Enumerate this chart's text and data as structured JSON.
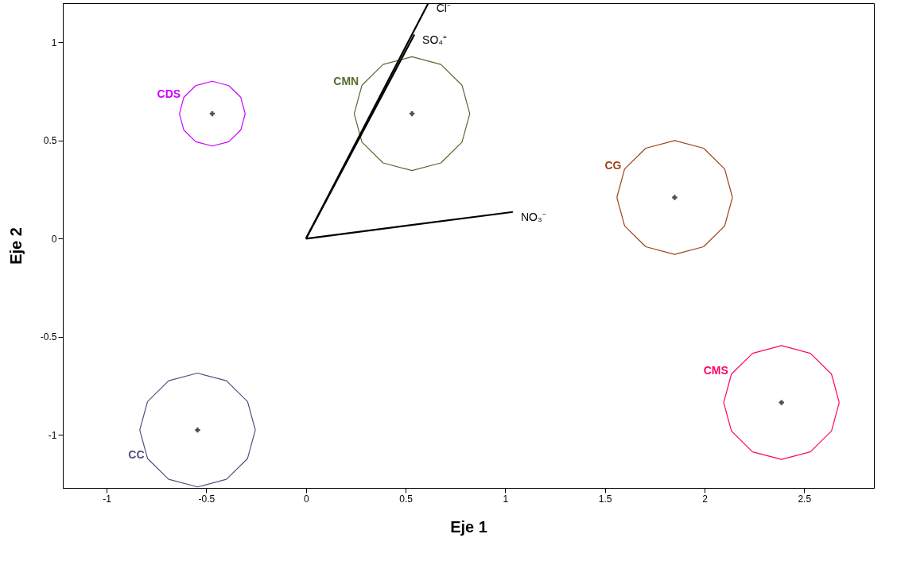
{
  "chart_data": {
    "type": "scatter",
    "xlabel": "Eje 1",
    "ylabel": "Eje 2",
    "xlim": [
      -1.22,
      2.85
    ],
    "ylim": [
      -1.27,
      1.2
    ],
    "xticks": [
      -1,
      -0.5,
      0,
      0.5,
      1,
      1.5,
      2,
      2.5
    ],
    "yticks": [
      -1,
      -0.5,
      0,
      0.5,
      1
    ],
    "grid": false,
    "series": [
      {
        "name": "CDS",
        "type": "line",
        "color": "#cc00ff",
        "x": [
          -0.635,
          -0.613,
          -0.553,
          -0.47,
          -0.387,
          -0.327,
          -0.305
        ],
        "values": [
          0.637,
          0.72,
          0.78,
          0.802,
          0.78,
          0.72,
          0.637
        ]
      },
      {
        "type": "line",
        "color": "#cc00ff",
        "x": [
          -0.635,
          -0.613,
          -0.553,
          -0.47,
          -0.387,
          -0.327,
          -0.305
        ],
        "values": [
          0.637,
          0.554,
          0.494,
          0.472,
          0.494,
          0.554,
          0.637
        ]
      },
      {
        "name": "CMN",
        "type": "line",
        "color": "#556b2f",
        "x": [
          0.242,
          0.281,
          0.387,
          0.532,
          0.677,
          0.783,
          0.822
        ],
        "values": [
          0.637,
          0.782,
          0.888,
          0.927,
          0.888,
          0.782,
          0.637
        ]
      },
      {
        "type": "line",
        "color": "#556b2f",
        "x": [
          0.242,
          0.281,
          0.387,
          0.532,
          0.677,
          0.783,
          0.822
        ],
        "values": [
          0.637,
          0.492,
          0.386,
          0.347,
          0.386,
          0.492,
          0.637
        ]
      },
      {
        "name": "CG",
        "type": "line",
        "color": "#a0401a",
        "x": [
          1.56,
          1.599,
          1.705,
          1.85,
          1.995,
          2.101,
          2.14
        ],
        "values": [
          0.21,
          0.355,
          0.461,
          0.5,
          0.461,
          0.355,
          0.21
        ]
      },
      {
        "type": "line",
        "color": "#a0401a",
        "x": [
          1.56,
          1.599,
          1.705,
          1.85,
          1.995,
          2.101,
          2.14
        ],
        "values": [
          0.21,
          0.065,
          -0.041,
          -0.08,
          -0.041,
          0.065,
          0.21
        ]
      },
      {
        "name": "CMS",
        "type": "line",
        "color": "#ff0066",
        "x": [
          2.096,
          2.135,
          2.241,
          2.386,
          2.531,
          2.637,
          2.676
        ],
        "values": [
          -0.835,
          -0.69,
          -0.584,
          -0.545,
          -0.584,
          -0.69,
          -0.835
        ]
      },
      {
        "type": "line",
        "color": "#ff0066",
        "x": [
          2.096,
          2.135,
          2.241,
          2.386,
          2.531,
          2.637,
          2.676
        ],
        "values": [
          -0.835,
          -0.98,
          -1.086,
          -1.125,
          -1.086,
          -0.98,
          -0.835
        ]
      },
      {
        "name": "CC",
        "type": "line",
        "color": "#5a4a80",
        "x": [
          -0.834,
          -0.795,
          -0.689,
          -0.544,
          -0.399,
          -0.293,
          -0.254
        ],
        "values": [
          -0.975,
          -1.12,
          -1.226,
          -1.265,
          -1.226,
          -1.12,
          -0.975
        ]
      },
      {
        "type": "line",
        "color": "#5a4a80",
        "x": [
          -0.834,
          -0.795,
          -0.689,
          -0.544,
          -0.399,
          -0.293,
          -0.254
        ],
        "values": [
          -0.975,
          -0.83,
          -0.724,
          -0.685,
          -0.724,
          -0.83,
          -0.975
        ]
      },
      {
        "name": "Cl⁻",
        "type": "line",
        "color": "#000000",
        "x": [
          0,
          0.614
        ],
        "values": [
          0,
          1.2
        ]
      },
      {
        "name": "SO₄⁼",
        "type": "line",
        "color": "#000000",
        "x": [
          0,
          0.544
        ],
        "values": [
          0,
          1.04
        ]
      },
      {
        "name": "NO₃⁻",
        "type": "line",
        "color": "#000000",
        "x": [
          0,
          1.038
        ],
        "values": [
          0,
          0.136
        ]
      },
      {
        "type": "scatter",
        "color": "#000000",
        "marker": "cross",
        "x": [
          -0.47,
          0.532,
          1.85,
          2.386,
          -0.544
        ],
        "values": [
          0.637,
          0.637,
          0.21,
          -0.835,
          -0.975
        ]
      }
    ]
  }
}
